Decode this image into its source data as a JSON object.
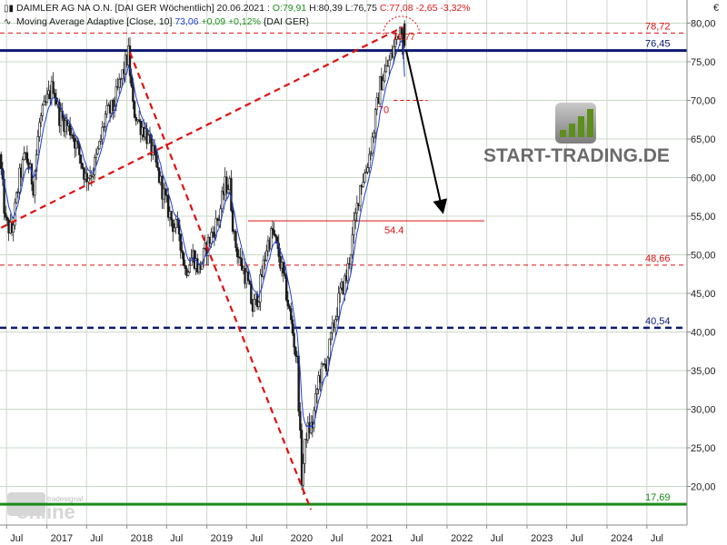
{
  "header": {
    "line1": {
      "name": "DAIMLER AG NA O.N. [DAI GER  Wöchentlich] 20.06.2021 : ",
      "open": "O:79,91",
      "high": " H:80,39",
      "low": " L:76,75",
      "close": " C:77,08 -2,65 -3,32%"
    },
    "line2": {
      "name": "Moving Average Adaptive [Close, 10]",
      "value": " 73,06",
      "change": " +0,09 +0,12%",
      "suffix": " {DAI GER}"
    }
  },
  "watermark": {
    "brand": "START-TRADING.DE",
    "sub_top": "tradesignal",
    "sub_main": "online"
  },
  "colors": {
    "candle_up": "#ffffff",
    "candle_down": "#1a1a1a",
    "wick": "#1a1a1a",
    "ma": "#1f3fd0",
    "trend_red": "#e01010",
    "res_navy": "#0a1a70",
    "support_green": "#1a8a1a",
    "grid": "#c9d8c9"
  },
  "chart_data": {
    "type": "candlestick",
    "title": "DAIMLER AG NA O.N. [DAI GER  Wöchentlich]",
    "currency": "€",
    "y_axis": {
      "scale": "linear",
      "range": [
        15,
        83
      ],
      "ticks": [
        20,
        25,
        30,
        35,
        40,
        45,
        50,
        55,
        60,
        65,
        70,
        75,
        80
      ],
      "position": "right"
    },
    "x_axis": {
      "range": [
        "2016-06-01",
        "2024-12-31"
      ],
      "ticks": [
        {
          "label": "Jul",
          "date": "2016-07-01"
        },
        {
          "label": "2017",
          "date": "2017-01-01"
        },
        {
          "label": "Jul",
          "date": "2017-07-01"
        },
        {
          "label": "2018",
          "date": "2018-01-01"
        },
        {
          "label": "Jul",
          "date": "2018-07-01"
        },
        {
          "label": "2019",
          "date": "2019-01-01"
        },
        {
          "label": "Jul",
          "date": "2019-07-01"
        },
        {
          "label": "2020",
          "date": "2020-01-01"
        },
        {
          "label": "Jul",
          "date": "2020-07-01"
        },
        {
          "label": "2021",
          "date": "2021-01-01"
        },
        {
          "label": "Jul",
          "date": "2021-07-01"
        },
        {
          "label": "2022",
          "date": "2022-01-01"
        },
        {
          "label": "Jul",
          "date": "2022-07-01"
        },
        {
          "label": "2023",
          "date": "2023-01-01"
        },
        {
          "label": "Jul",
          "date": "2023-07-01"
        },
        {
          "label": "2024",
          "date": "2024-01-01"
        },
        {
          "label": "Jul",
          "date": "2024-07-01"
        }
      ]
    },
    "price_path": [
      [
        "2016-06-06",
        63
      ],
      [
        "2016-07-04",
        54
      ],
      [
        "2016-08-01",
        53
      ],
      [
        "2016-09-05",
        60
      ],
      [
        "2016-10-03",
        63
      ],
      [
        "2016-11-07",
        59
      ],
      [
        "2016-12-05",
        67
      ],
      [
        "2017-01-09",
        70
      ],
      [
        "2017-02-06",
        72
      ],
      [
        "2017-03-06",
        68
      ],
      [
        "2017-04-03",
        67
      ],
      [
        "2017-05-01",
        66
      ],
      [
        "2017-06-05",
        63
      ],
      [
        "2017-07-03",
        60
      ],
      [
        "2017-08-07",
        61
      ],
      [
        "2017-09-04",
        64
      ],
      [
        "2017-10-02",
        68
      ],
      [
        "2017-11-06",
        69
      ],
      [
        "2017-12-04",
        72
      ],
      [
        "2018-01-15",
        76
      ],
      [
        "2018-02-05",
        69
      ],
      [
        "2018-03-05",
        67
      ],
      [
        "2018-04-02",
        66
      ],
      [
        "2018-05-07",
        63
      ],
      [
        "2018-06-04",
        60
      ],
      [
        "2018-07-02",
        57
      ],
      [
        "2018-08-06",
        54
      ],
      [
        "2018-09-03",
        53
      ],
      [
        "2018-10-01",
        48
      ],
      [
        "2018-11-05",
        50
      ],
      [
        "2018-12-03",
        48
      ],
      [
        "2019-01-07",
        51
      ],
      [
        "2019-02-04",
        53
      ],
      [
        "2019-03-04",
        55
      ],
      [
        "2019-04-01",
        59
      ],
      [
        "2019-04-22",
        59
      ],
      [
        "2019-05-13",
        52
      ],
      [
        "2019-06-10",
        49
      ],
      [
        "2019-07-08",
        47
      ],
      [
        "2019-08-05",
        43
      ],
      [
        "2019-09-02",
        45
      ],
      [
        "2019-10-07",
        51
      ],
      [
        "2019-11-04",
        53
      ],
      [
        "2019-12-02",
        50
      ],
      [
        "2020-01-06",
        45
      ],
      [
        "2020-02-03",
        40
      ],
      [
        "2020-02-24",
        36
      ],
      [
        "2020-03-09",
        26
      ],
      [
        "2020-03-16",
        21
      ],
      [
        "2020-04-06",
        27
      ],
      [
        "2020-05-04",
        28
      ],
      [
        "2020-06-01",
        34
      ],
      [
        "2020-07-06",
        36
      ],
      [
        "2020-08-03",
        40
      ],
      [
        "2020-09-07",
        45
      ],
      [
        "2020-10-05",
        47
      ],
      [
        "2020-11-02",
        52
      ],
      [
        "2020-12-07",
        59
      ],
      [
        "2021-01-04",
        61
      ],
      [
        "2021-02-01",
        65
      ],
      [
        "2021-03-08",
        72
      ],
      [
        "2021-04-05",
        74
      ],
      [
        "2021-05-03",
        76
      ],
      [
        "2021-05-31",
        79
      ],
      [
        "2021-06-14",
        79.9
      ],
      [
        "2021-06-21",
        77
      ]
    ],
    "last_bar": {
      "date": "2021-06-21",
      "open": 79.91,
      "high": 80.39,
      "low": 76.75,
      "close": 77.08
    },
    "moving_average": {
      "name": "Moving Average Adaptive [Close, 10]",
      "last": 73.06
    },
    "levels": [
      {
        "value": 78.72,
        "label": "78,72",
        "style": "dashed",
        "color": "#e01010"
      },
      {
        "value": 76.45,
        "label": "76,45",
        "style": "solid-thick",
        "color": "#0a1a70"
      },
      {
        "value": 48.66,
        "label": "48,66",
        "style": "dashed",
        "color": "#e01010"
      },
      {
        "value": 40.54,
        "label": "40,54",
        "style": "dashed-thick",
        "color": "#0a1a70"
      },
      {
        "value": 17.69,
        "label": "17,69",
        "style": "solid-thick",
        "color": "#1a8a1a"
      }
    ],
    "segments": [
      {
        "value": 54.4,
        "label": "54.4",
        "from": "2019-07-08",
        "to": "2022-06-20",
        "style": "solid"
      },
      {
        "value": 70,
        "label": "70",
        "from": "2021-05-03",
        "to": "2021-10-04",
        "style": "dashed"
      }
    ],
    "annotations": [
      {
        "text": "78.77",
        "date": "2021-06-07",
        "value": 78.77
      }
    ],
    "trendlines": [
      {
        "from": [
          "2016-06-06",
          53.5
        ],
        "to": [
          "2021-06-14",
          79.5
        ],
        "style": "dashed",
        "color": "#e01010"
      },
      {
        "from": [
          "2018-01-15",
          76.2
        ],
        "to": [
          "2020-04-20",
          17.0
        ],
        "style": "dashed",
        "color": "#e01010"
      }
    ],
    "arrow": {
      "from": [
        "2021-06-28",
        76.5
      ],
      "to": [
        "2021-12-13",
        55.5
      ]
    },
    "circle": {
      "center": [
        "2021-06-07",
        79.0
      ]
    },
    "grid": true,
    "legend_placement": "top-left"
  }
}
